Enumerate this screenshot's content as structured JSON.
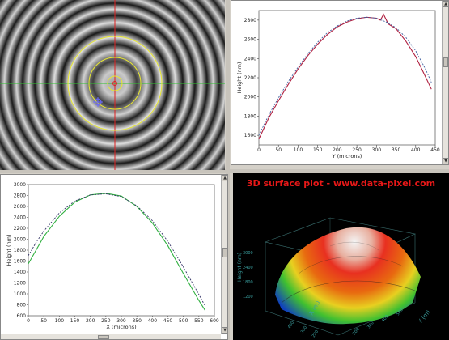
{
  "interferogram": {
    "crosshair_color": "#e02020",
    "horizontal_line_color": "#30c030",
    "circle_color": "#e8e830"
  },
  "chart_data": [
    {
      "type": "line",
      "xlabel": "Y (microns)",
      "ylabel": "Height (nm)",
      "xlim": [
        0,
        450
      ],
      "ylim": [
        1500,
        2900
      ],
      "xticks": [
        0,
        50,
        100,
        150,
        200,
        250,
        300,
        350,
        400,
        450
      ],
      "yticks": [
        1600,
        1800,
        2000,
        2200,
        2400,
        2600,
        2800
      ],
      "series": [
        {
          "style": "measured",
          "color": "#b02040",
          "x": [
            0,
            25,
            50,
            75,
            100,
            125,
            150,
            175,
            200,
            225,
            250,
            275,
            300,
            310,
            318,
            330,
            350,
            375,
            400,
            425,
            440
          ],
          "y": [
            1560,
            1780,
            1960,
            2130,
            2290,
            2430,
            2550,
            2650,
            2730,
            2780,
            2815,
            2830,
            2820,
            2800,
            2860,
            2760,
            2710,
            2580,
            2420,
            2210,
            2080
          ]
        },
        {
          "style": "fit",
          "color": "#4060a0",
          "x": [
            0,
            25,
            50,
            75,
            100,
            125,
            150,
            175,
            200,
            225,
            250,
            275,
            300,
            325,
            350,
            375,
            400,
            425,
            440
          ],
          "y": [
            1600,
            1810,
            1990,
            2160,
            2310,
            2450,
            2570,
            2670,
            2740,
            2790,
            2820,
            2830,
            2820,
            2780,
            2720,
            2620,
            2480,
            2290,
            2150
          ]
        }
      ]
    },
    {
      "type": "line",
      "xlabel": "X (microns)",
      "ylabel": "Height (nm)",
      "xlim": [
        0,
        600
      ],
      "ylim": [
        600,
        3000
      ],
      "xticks": [
        0,
        50,
        100,
        150,
        200,
        250,
        300,
        350,
        400,
        450,
        500,
        550,
        600
      ],
      "yticks": [
        600,
        800,
        1000,
        1200,
        1400,
        1600,
        1800,
        2000,
        2200,
        2400,
        2600,
        2800,
        3000
      ],
      "series": [
        {
          "style": "measured",
          "color": "#30b040",
          "x": [
            0,
            25,
            50,
            100,
            150,
            200,
            250,
            300,
            350,
            400,
            450,
            500,
            550,
            570
          ],
          "y": [
            1550,
            1800,
            2050,
            2420,
            2680,
            2810,
            2840,
            2790,
            2600,
            2300,
            1880,
            1370,
            880,
            700
          ]
        },
        {
          "style": "fit",
          "color": "#333366",
          "x": [
            0,
            25,
            50,
            100,
            150,
            200,
            250,
            300,
            350,
            400,
            450,
            500,
            550,
            570
          ],
          "y": [
            1700,
            1940,
            2150,
            2480,
            2700,
            2810,
            2830,
            2780,
            2610,
            2340,
            1960,
            1490,
            990,
            780
          ]
        }
      ]
    }
  ],
  "surface_plot": {
    "title": "3D surface plot - www.data-pixel.com",
    "title_color": "#e81818"
  }
}
